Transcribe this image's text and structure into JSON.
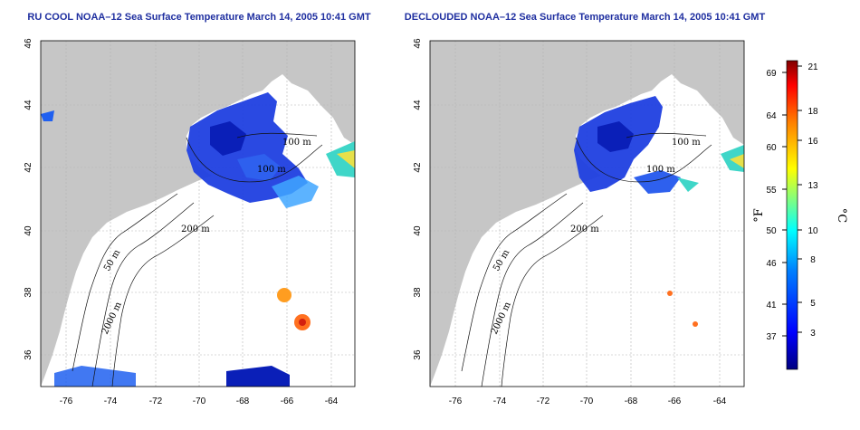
{
  "panels": [
    {
      "id": "left",
      "title": "RU COOL NOAA–12 Sea Surface Temperature March 14, 2005 10:41 GMT"
    },
    {
      "id": "right",
      "title": "DECLOUDED NOAA–12 Sea Surface Temperature March 14, 2005 10:41 GMT"
    }
  ],
  "map": {
    "lon_range": [
      -77.5,
      -63
    ],
    "lat_range": [
      35,
      46
    ],
    "x_ticks": [
      "-76",
      "-74",
      "-72",
      "-70",
      "-68",
      "-66",
      "-64"
    ],
    "y_ticks": [
      "36",
      "38",
      "40",
      "42",
      "44",
      "46"
    ],
    "contour_labels": [
      "100 m",
      "100 m",
      "200 m",
      "50 m",
      "2000 m"
    ],
    "land_color": "#c6c6c6",
    "grid": "dotted"
  },
  "colorbar": {
    "f_label": "°F",
    "c_label": "°C",
    "f_ticks": [
      "69",
      "64",
      "60",
      "55",
      "50",
      "46",
      "41",
      "37"
    ],
    "c_ticks": [
      "21",
      "18",
      "16",
      "13",
      "10",
      "8",
      "5",
      "3"
    ],
    "colors": [
      "#000080",
      "#0000ff",
      "#0080ff",
      "#00ffff",
      "#80ff80",
      "#ffff00",
      "#ff8000",
      "#ff0000",
      "#800000"
    ]
  }
}
